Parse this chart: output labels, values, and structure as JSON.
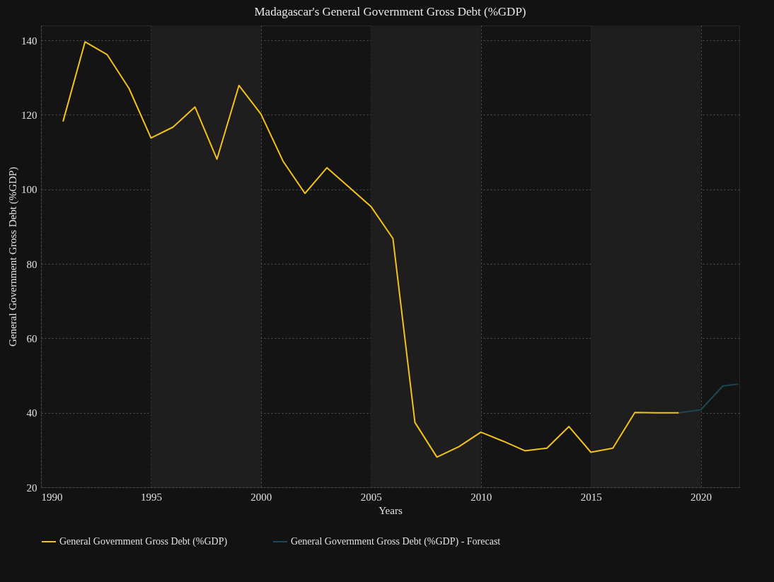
{
  "chart_data": {
    "type": "line",
    "title": "Madagascar's General Government Gross Debt (%GDP)",
    "xlabel": "Years",
    "ylabel": "General Government Gross Debt (%GDP)",
    "xlim": [
      1990,
      2021.75
    ],
    "xticks": [
      1990,
      1995,
      2000,
      2005,
      2010,
      2015,
      2020
    ],
    "ylim": [
      20,
      144
    ],
    "yticks": [
      20,
      40,
      60,
      80,
      100,
      120,
      140
    ],
    "grid": true,
    "legend": "bottom",
    "marker": "none",
    "line_style": "solid",
    "bands": [
      {
        "axis": "x",
        "from": 1995,
        "to": 2000,
        "color": "#1e1e1e"
      },
      {
        "axis": "x",
        "from": 2005,
        "to": 2010,
        "color": "#1e1e1e"
      },
      {
        "axis": "x",
        "from": 2015,
        "to": 2020,
        "color": "#1e1e1e"
      }
    ],
    "series": [
      {
        "name": "General Government Gross Debt (%GDP)",
        "color": "#f2c21b",
        "x": [
          1991,
          1992,
          1993,
          1994,
          1995,
          1996,
          1997,
          1998,
          1999,
          2000,
          2001,
          2002,
          2003,
          2004,
          2005,
          2006,
          2007,
          2008,
          2009,
          2010,
          2011,
          2012,
          2013,
          2014,
          2015,
          2016,
          2017,
          2018,
          2019
        ],
        "values": [
          118.2,
          139.6,
          136.2,
          127.1,
          113.8,
          116.7,
          122.1,
          108.1,
          127.9,
          120.2,
          107.6,
          98.9,
          105.8,
          100.6,
          95.4,
          86.8,
          37.4,
          28.1,
          30.9,
          34.8,
          32.4,
          29.8,
          30.5,
          36.3,
          29.4,
          30.5,
          40.1,
          40,
          40
        ]
      },
      {
        "name": "General Government Gross Debt (%GDP) - Forecast",
        "color": "#1d4756",
        "x": [
          2019,
          2020,
          2021,
          2021.7
        ],
        "values": [
          40,
          40.8,
          47.2,
          47.7
        ]
      }
    ]
  }
}
